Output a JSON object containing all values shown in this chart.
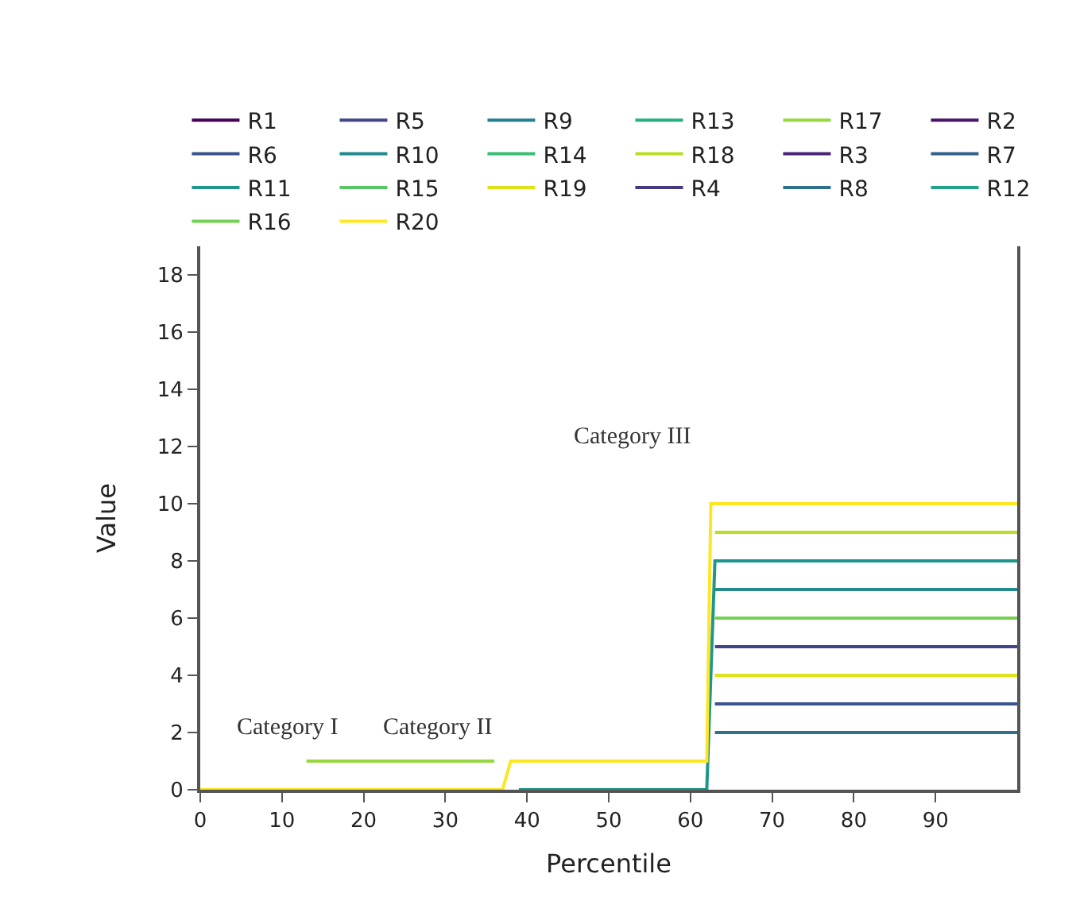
{
  "chart_data": {
    "type": "line",
    "xlabel": "Percentile",
    "ylabel": "Value",
    "xlim": [
      0,
      100
    ],
    "ylim": [
      0,
      19
    ],
    "xticks": [
      0,
      10,
      20,
      30,
      40,
      50,
      60,
      70,
      80,
      90
    ],
    "yticks": [
      0,
      2,
      4,
      6,
      8,
      10,
      12,
      14,
      16,
      18
    ],
    "grid": false,
    "legend": "top",
    "marker": "none",
    "line_style": "solid",
    "annotations": [
      "Category I",
      "Category II",
      "Category III"
    ],
    "series": [
      {
        "name": "R1",
        "color": "#440154"
      },
      {
        "name": "R2",
        "color": "#481467"
      },
      {
        "name": "R3",
        "color": "#482576"
      },
      {
        "name": "R4",
        "color": "#453781"
      },
      {
        "name": "R5",
        "color": "#404688",
        "x": [
          63,
          100
        ],
        "values": [
          5,
          5
        ]
      },
      {
        "name": "R6",
        "color": "#39558c",
        "x": [
          63,
          100
        ],
        "values": [
          3,
          3
        ]
      },
      {
        "name": "R7",
        "color": "#33638d"
      },
      {
        "name": "R8",
        "color": "#2d718e",
        "x": [
          63,
          100
        ],
        "values": [
          2,
          2
        ]
      },
      {
        "name": "R9",
        "color": "#287d8e"
      },
      {
        "name": "R10",
        "color": "#238a8d",
        "x": [
          63,
          100
        ],
        "values": [
          7,
          7
        ]
      },
      {
        "name": "R11",
        "color": "#1f968b",
        "x": [
          39,
          62,
          63,
          100
        ],
        "values": [
          0,
          0,
          8,
          8
        ]
      },
      {
        "name": "R12",
        "color": "#20a386"
      },
      {
        "name": "R13",
        "color": "#29af7f"
      },
      {
        "name": "R14",
        "color": "#3dbc74"
      },
      {
        "name": "R15",
        "color": "#56c667"
      },
      {
        "name": "R16",
        "color": "#75d054",
        "x": [
          63,
          100
        ],
        "values": [
          6,
          6
        ]
      },
      {
        "name": "R17",
        "color": "#95d840",
        "x": [
          13,
          36
        ],
        "values": [
          1,
          1
        ]
      },
      {
        "name": "R18",
        "color": "#bade28",
        "x": [
          63,
          100
        ],
        "values": [
          9,
          9
        ]
      },
      {
        "name": "R19",
        "color": "#dde318",
        "x": [
          63,
          100
        ],
        "values": [
          4,
          4
        ]
      },
      {
        "name": "R20",
        "color": "#fde725",
        "x": [
          0,
          37,
          38,
          62,
          62.5,
          100
        ],
        "values": [
          0,
          0,
          1,
          1,
          10,
          10
        ]
      }
    ]
  }
}
